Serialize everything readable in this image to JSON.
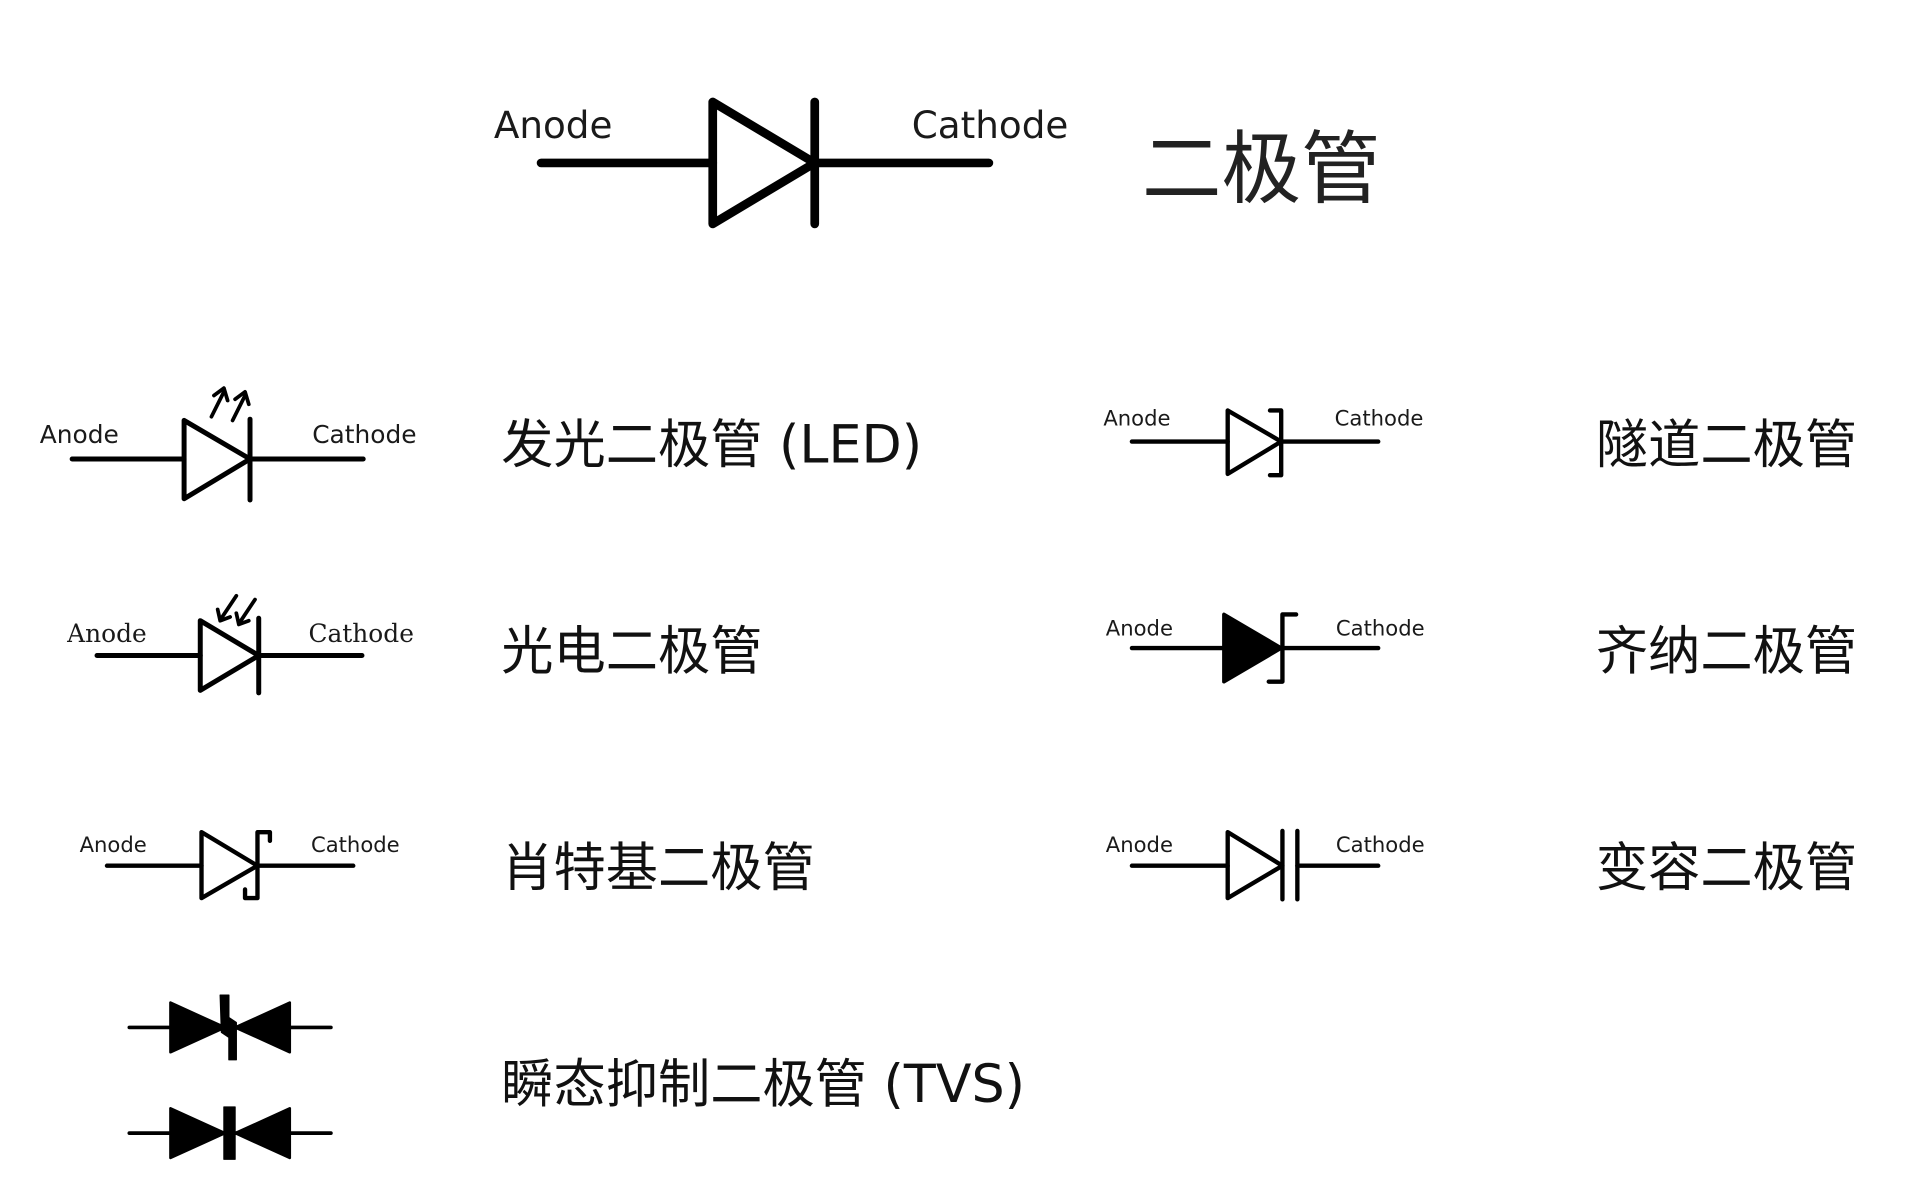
{
  "main_diode": {
    "anode_label": "Anode",
    "cathode_label": "Cathode",
    "name": "二极管"
  },
  "symbols": {
    "led": {
      "anode_label": "Anode",
      "cathode_label": "Cathode",
      "name": "发光二极管 (LED)"
    },
    "tunnel": {
      "anode_label": "Anode",
      "cathode_label": "Cathode",
      "name": "隧道二极管"
    },
    "photo": {
      "anode_label": "Anode",
      "cathode_label": "Cathode",
      "name": "光电二极管"
    },
    "zener": {
      "anode_label": "Anode",
      "cathode_label": "Cathode",
      "name": "齐纳二极管"
    },
    "schottky": {
      "anode_label": "Anode",
      "cathode_label": "Cathode",
      "name": "肖特基二极管"
    },
    "varactor": {
      "anode_label": "Anode",
      "cathode_label": "Cathode",
      "name": "变容二极管"
    },
    "tvs": {
      "name": "瞬态抑制二极管 (TVS)"
    }
  }
}
